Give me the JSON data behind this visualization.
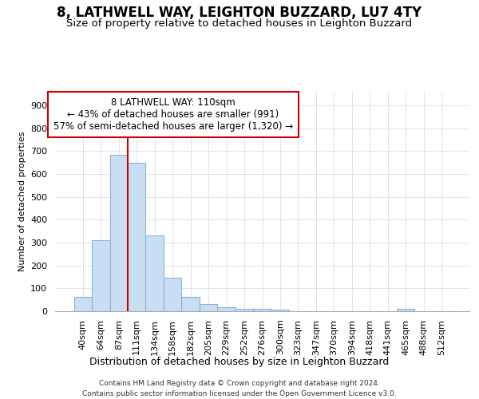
{
  "title": "8, LATHWELL WAY, LEIGHTON BUZZARD, LU7 4TY",
  "subtitle": "Size of property relative to detached houses in Leighton Buzzard",
  "xlabel": "Distribution of detached houses by size in Leighton Buzzard",
  "ylabel": "Number of detached properties",
  "footer_line1": "Contains HM Land Registry data © Crown copyright and database right 2024.",
  "footer_line2": "Contains public sector information licensed under the Open Government Licence v3.0.",
  "bar_labels": [
    "40sqm",
    "64sqm",
    "87sqm",
    "111sqm",
    "134sqm",
    "158sqm",
    "182sqm",
    "205sqm",
    "229sqm",
    "252sqm",
    "276sqm",
    "300sqm",
    "323sqm",
    "347sqm",
    "370sqm",
    "394sqm",
    "418sqm",
    "441sqm",
    "465sqm",
    "488sqm",
    "512sqm"
  ],
  "bar_values": [
    62,
    310,
    685,
    650,
    330,
    148,
    62,
    30,
    18,
    10,
    10,
    8,
    0,
    0,
    0,
    0,
    0,
    0,
    12,
    0,
    0
  ],
  "bar_color": "#c9ddf3",
  "bar_edge_color": "#8ab4d8",
  "vline_x_idx": 3,
  "vline_color": "#cc0000",
  "annotation_line1": "8 LATHWELL WAY: 110sqm",
  "annotation_line2": "← 43% of detached houses are smaller (991)",
  "annotation_line3": "57% of semi-detached houses are larger (1,320) →",
  "annotation_box_edgecolor": "#cc0000",
  "ylim_max": 960,
  "yticks": [
    0,
    100,
    200,
    300,
    400,
    500,
    600,
    700,
    800,
    900
  ],
  "grid_color": "#d0d8e8",
  "bg_color": "white",
  "title_fontsize": 12,
  "subtitle_fontsize": 9.5,
  "xlabel_fontsize": 9,
  "ylabel_fontsize": 8,
  "tick_fontsize": 8,
  "footer_fontsize": 6.5,
  "annotation_fontsize": 8.5,
  "bar_width": 1.0
}
